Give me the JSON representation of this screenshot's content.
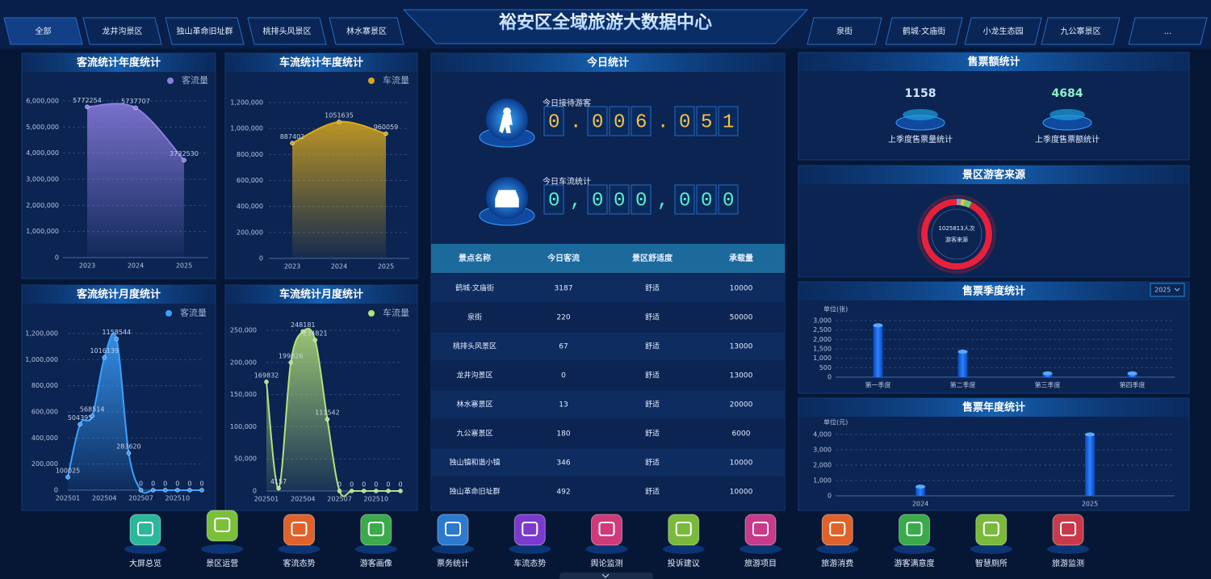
{
  "header": {
    "title": "裕安区全域旅游大数据中心",
    "left_tabs": [
      "全部",
      "龙井沟景区",
      "独山革命旧址群",
      "桃排头风景区",
      "林水寨景区"
    ],
    "right_tabs": [
      "泉街",
      "鹤城·文庙街",
      "小龙生态园",
      "九公寨景区",
      "..."
    ]
  },
  "chart_data": [
    {
      "type": "area",
      "title": "客流统计年度统计",
      "categories": [
        "2023",
        "2024",
        "2025"
      ],
      "series": [
        {
          "name": "客流量",
          "color": "#8c7ee0",
          "values": [
            5772254,
            5737707,
            3732530
          ]
        }
      ],
      "ylim": [
        0,
        6000000
      ],
      "yticks": [
        0,
        {
          "value": 1000000,
          "label": "1,000,000"
        },
        {
          "value": 2000000,
          "label": "2,000,000"
        },
        {
          "value": 3000000,
          "label": "3,000,000"
        },
        {
          "value": 4000000,
          "label": "4,000,000"
        },
        {
          "value": 5000000,
          "label": "5,000,000"
        },
        {
          "value": 6000000,
          "label": "6,000,000"
        }
      ],
      "grid": true,
      "legend": "top-right"
    },
    {
      "type": "area",
      "title": "车流统计年度统计",
      "categories": [
        "2023",
        "2024",
        "2025"
      ],
      "series": [
        {
          "name": "车流量",
          "color": "#d9a81c",
          "values": [
            887402,
            1051635,
            960059
          ]
        }
      ],
      "ylim": [
        0,
        1200000
      ],
      "yticks": [
        0,
        {
          "value": 200000,
          "label": "200,000"
        },
        {
          "value": 400000,
          "label": "400,000"
        },
        {
          "value": 600000,
          "label": "600,000"
        },
        {
          "value": 800000,
          "label": "800,000"
        },
        {
          "value": 1000000,
          "label": "1,000,000"
        },
        {
          "value": 1200000,
          "label": "1,200,000"
        }
      ],
      "grid": true,
      "legend": "top-right"
    },
    {
      "type": "area",
      "title": "客流统计月度统计",
      "categories": [
        "202501",
        null,
        null,
        "202504",
        null,
        null,
        "202507",
        null,
        null,
        "202510",
        null,
        null
      ],
      "series": [
        {
          "name": "客流量",
          "color": "#3aa0ff",
          "values": [
            100025,
            504395,
            568514,
            1016139,
            1158544,
            283620,
            0,
            0,
            0,
            0,
            0,
            0
          ]
        }
      ],
      "ylim": [
        0,
        1200000
      ],
      "yticks": [
        0,
        {
          "value": 200000,
          "label": "200,000"
        },
        {
          "value": 400000,
          "label": "400,000"
        },
        {
          "value": 600000,
          "label": "600,000"
        },
        {
          "value": 800000,
          "label": "800,000"
        },
        {
          "value": 1000000,
          "label": "1,000,000"
        },
        {
          "value": 1200000,
          "label": "1,200,000"
        }
      ],
      "grid": true,
      "legend": "top-right"
    },
    {
      "type": "area",
      "title": "车流统计月度统计",
      "categories": [
        "202501",
        null,
        null,
        "202504",
        null,
        null,
        "202507",
        null,
        null,
        "202510",
        null,
        null
      ],
      "series": [
        {
          "name": "车流量",
          "color": "#b5e07a",
          "values": [
            169832,
            4157,
            199826,
            248181,
            234821,
            111542,
            0,
            0,
            0,
            0,
            0,
            0
          ]
        }
      ],
      "ylim": [
        0,
        250000
      ],
      "yticks": [
        0,
        {
          "value": 50000,
          "label": "50,000"
        },
        {
          "value": 100000,
          "label": "100,000"
        },
        {
          "value": 150000,
          "label": "150,000"
        },
        {
          "value": 200000,
          "label": "200,000"
        },
        {
          "value": 250000,
          "label": "250,000"
        }
      ],
      "grid": true,
      "legend": "top-right"
    },
    {
      "type": "bar",
      "title": "售票季度统计",
      "year_select": "2025",
      "y_label": "单位(张)",
      "categories": [
        "第一季度",
        "第二季度",
        "第三季度",
        "第四季度"
      ],
      "values": [
        2750,
        1350,
        200,
        200
      ],
      "color": "#1a6cff",
      "ylim": [
        0,
        3000
      ],
      "yticks": [
        0,
        500,
        {
          "value": 1000,
          "label": "1,000"
        },
        {
          "value": 1500,
          "label": "1,500"
        },
        {
          "value": 2000,
          "label": "2,000"
        },
        {
          "value": 2500,
          "label": "2,500"
        },
        {
          "value": 3000,
          "label": "3,000"
        }
      ],
      "grid": true
    },
    {
      "type": "bar",
      "title": "售票年度统计",
      "y_label": "单位(元)",
      "categories": [
        "2024",
        "2025"
      ],
      "values": [
        600,
        4000
      ],
      "color": "#1a6cff",
      "ylim": [
        0,
        4000
      ],
      "yticks": [
        0,
        {
          "value": 1000,
          "label": "1,000"
        },
        {
          "value": 2000,
          "label": "2,000"
        },
        {
          "value": 3000,
          "label": "3,000"
        },
        {
          "value": 4000,
          "label": "4,000"
        }
      ],
      "grid": true
    },
    {
      "type": "pie",
      "title": "景区游客来源",
      "center_text": "1025813人次",
      "center_subtext": "游客来源",
      "values": [
        2,
        2,
        3,
        93
      ],
      "colors": [
        "#7aa0c8",
        "#e8c040",
        "#6ad07a",
        "#e8203a"
      ]
    }
  ],
  "today": {
    "title": "今日统计",
    "visitors_label": "今日接待游客",
    "visitors": "0.006.051",
    "vehicles_label": "今日车流统计",
    "vehicles": "0,000,000"
  },
  "table": {
    "columns": [
      "景点名称",
      "今日客流",
      "景区舒适度",
      "承载量"
    ],
    "rows": [
      [
        "鹤城·文庙街",
        3187,
        "舒适",
        10000
      ],
      [
        "泉街",
        220,
        "舒适",
        50000
      ],
      [
        "桃排头风景区",
        67,
        "舒适",
        13000
      ],
      [
        "龙井沟景区",
        0,
        "舒适",
        13000
      ],
      [
        "林水寨景区",
        13,
        "舒适",
        20000
      ],
      [
        "九公寨景区",
        180,
        "舒适",
        6000
      ],
      [
        "独山镇和谐小镇",
        346,
        "舒适",
        10000
      ],
      [
        "独山革命旧址群",
        492,
        "舒适",
        10000
      ]
    ]
  },
  "ticket_sales": {
    "title": "售票额统计",
    "items": [
      {
        "value": 1158,
        "label": "上季度售票量统计"
      },
      {
        "value": 4684,
        "label": "上季度售票额统计"
      }
    ]
  },
  "bottom_nav": [
    "大屏总览",
    "景区运营",
    "客流态势",
    "游客画像",
    "票务统计",
    "车流态势",
    "舆论监测",
    "投诉建议",
    "旅游项目",
    "旅游消费",
    "游客满意度",
    "智慧厕所",
    "旅游监测"
  ]
}
